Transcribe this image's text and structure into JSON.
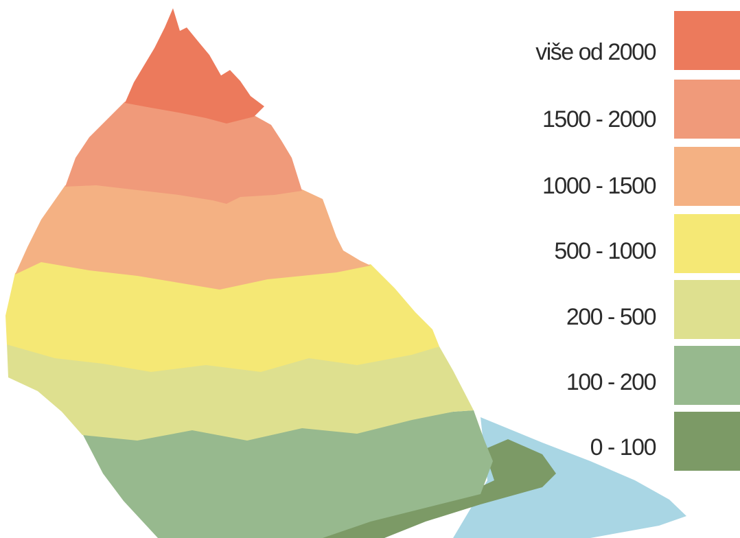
{
  "legend": {
    "items": [
      {
        "label": "više od 2000",
        "color": "#ec7a5c"
      },
      {
        "label": "1500 - 2000",
        "color": "#f09a7a"
      },
      {
        "label": "1000 - 1500",
        "color": "#f4b183"
      },
      {
        "label": "500 - 1000",
        "color": "#f5e875"
      },
      {
        "label": "200 - 500",
        "color": "#dee08f"
      },
      {
        "label": "100 - 200",
        "color": "#97b98e"
      },
      {
        "label": "0 - 100",
        "color": "#7c9a66"
      }
    ]
  },
  "water_color": "#a9d6e4"
}
